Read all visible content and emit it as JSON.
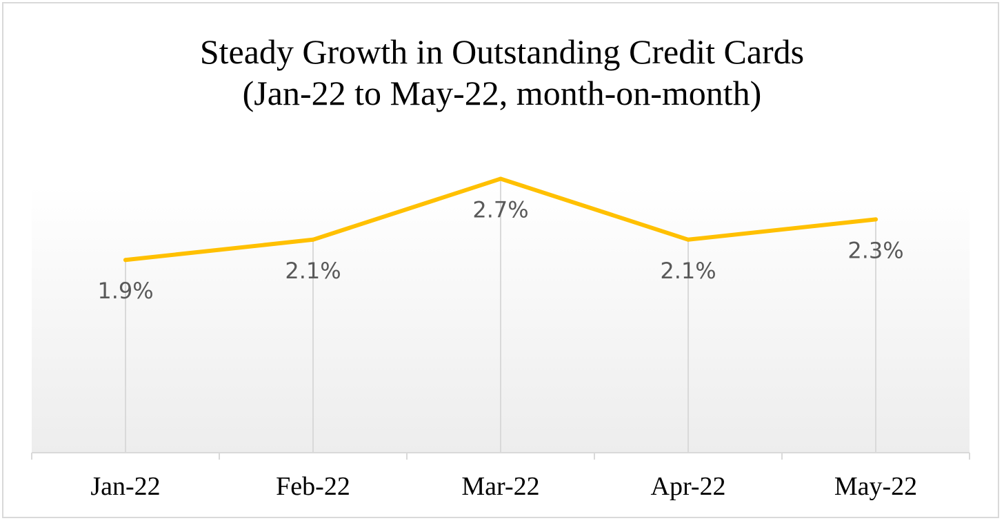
{
  "chart_data": {
    "type": "line",
    "title": "Steady Growth in Outstanding Credit Cards",
    "subtitle": "(Jan-22 to May-22, month-on-month)",
    "categories": [
      "Jan-22",
      "Feb-22",
      "Mar-22",
      "Apr-22",
      "May-22"
    ],
    "series": [
      {
        "values": [
          1.9,
          2.1,
          2.7,
          2.1,
          2.3
        ],
        "data_labels": [
          "1.9%",
          "2.1%",
          "2.7%",
          "2.1%",
          "2.3%"
        ],
        "color": "#FFC000"
      }
    ],
    "ylim": [
      0,
      2.9
    ],
    "grid": "vertical drop lines",
    "legend": "none",
    "plot_background": "light grey gradient"
  }
}
